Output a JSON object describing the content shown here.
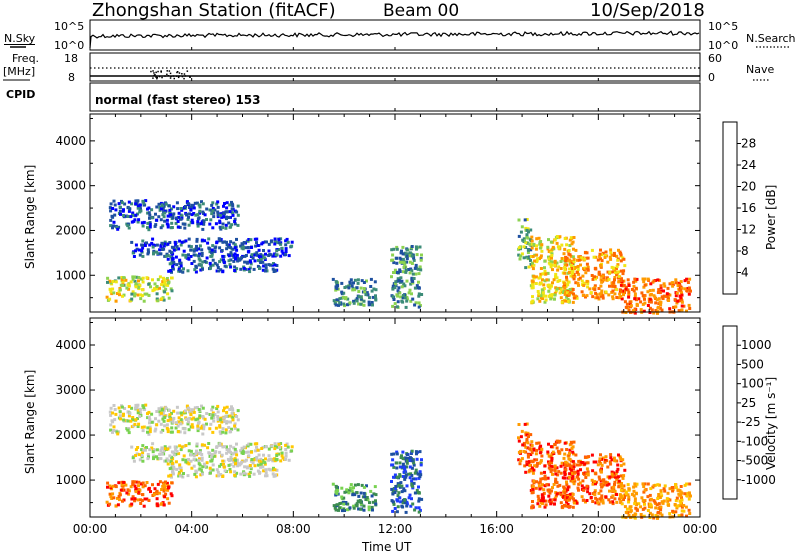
{
  "header": {
    "station": "Zhongshan Station (fitACF)",
    "beam": "Beam 00",
    "date": "10/Sep/2018"
  },
  "strip_labels": {
    "nsky": "N.Sky",
    "nsky_top": "10^5",
    "nsky_bottom": "10^0",
    "nsearch": "N.Search",
    "nsearch_top": "10^5",
    "nsearch_bottom": "10^0",
    "freq_label": "Freq.",
    "freq_unit": "[MHz]",
    "freq_top": "18",
    "freq_bottom": "8",
    "nave": "Nave",
    "nave_top": "60",
    "nave_bottom": "0",
    "cpid": "CPID",
    "cpid_text": "normal (fast stereo) 153"
  },
  "colors": {
    "power": [
      "#0000ff",
      "#1e50a0",
      "#3c8c78",
      "#8cd250",
      "#f0e614",
      "#ff9b00",
      "#ff6400",
      "#ff0000"
    ],
    "velocity": [
      "#ff0000",
      "#ff6400",
      "#ff9b00",
      "#ffc800",
      "#c8c8c8",
      "#78d250",
      "#3c8c50",
      "#1e50a0",
      "#1e3cff"
    ]
  },
  "chart_data": [
    {
      "type": "heatmap",
      "name": "power",
      "xlabel": "Time UT",
      "ylabel": "Slant Range [km]",
      "colorbar_label": "Power [dB]",
      "xlim": [
        0,
        24
      ],
      "ylim": [
        180,
        4600
      ],
      "x_ticks": [
        "00:00",
        "04:00",
        "08:00",
        "12:00",
        "16:00",
        "20:00",
        "00:00"
      ],
      "y_ticks": [
        1000,
        2000,
        3000,
        4000
      ],
      "color_ticks": [
        4,
        8,
        12,
        16,
        20,
        24,
        28
      ],
      "color_range": [
        0,
        32
      ],
      "regions": [
        {
          "t": [
            0.7,
            5.8
          ],
          "r": [
            2050,
            2700
          ],
          "level": 6
        },
        {
          "t": [
            1.5,
            7.9
          ],
          "r": [
            1450,
            1850
          ],
          "level": 5
        },
        {
          "t": [
            3.0,
            7.3
          ],
          "r": [
            1100,
            1500
          ],
          "level": 6
        },
        {
          "t": [
            0.6,
            3.2
          ],
          "r": [
            450,
            1000
          ],
          "level": 16
        },
        {
          "t": [
            9.5,
            11.2
          ],
          "r": [
            350,
            950
          ],
          "level": 9
        },
        {
          "t": [
            11.8,
            13.0
          ],
          "r": [
            300,
            1700
          ],
          "level": 10
        },
        {
          "t": [
            16.8,
            17.3
          ],
          "r": [
            1200,
            2300
          ],
          "level": 12
        },
        {
          "t": [
            17.3,
            19.0
          ],
          "r": [
            400,
            1900
          ],
          "level": 19
        },
        {
          "t": [
            18.6,
            21.0
          ],
          "r": [
            500,
            1600
          ],
          "level": 23
        },
        {
          "t": [
            20.8,
            23.6
          ],
          "r": [
            180,
            950
          ],
          "level": 25
        }
      ]
    },
    {
      "type": "heatmap",
      "name": "velocity",
      "xlabel": "Time UT",
      "ylabel": "Slant Range [km]",
      "colorbar_label": "Velocity [m s⁻¹]",
      "xlim": [
        0,
        24
      ],
      "ylim": [
        180,
        4600
      ],
      "x_ticks": [
        "00:00",
        "04:00",
        "08:00",
        "12:00",
        "16:00",
        "20:00",
        "00:00"
      ],
      "y_ticks": [
        1000,
        2000,
        3000,
        4000
      ],
      "color_ticks": [
        "1000",
        "500",
        "100",
        "25",
        "-25",
        "-100",
        "-500",
        "-1000"
      ],
      "regions": [
        {
          "t": [
            0.7,
            5.8
          ],
          "r": [
            2050,
            2700
          ],
          "level": 4
        },
        {
          "t": [
            1.5,
            7.9
          ],
          "r": [
            1450,
            1850
          ],
          "level": 4
        },
        {
          "t": [
            3.0,
            7.3
          ],
          "r": [
            1100,
            1500
          ],
          "level": 4
        },
        {
          "t": [
            0.6,
            3.2
          ],
          "r": [
            450,
            1000
          ],
          "level": 1
        },
        {
          "t": [
            9.5,
            11.2
          ],
          "r": [
            350,
            950
          ],
          "level": 6
        },
        {
          "t": [
            11.8,
            13.0
          ],
          "r": [
            300,
            1700
          ],
          "level": 7
        },
        {
          "t": [
            16.8,
            17.3
          ],
          "r": [
            1200,
            2300
          ],
          "level": 1
        },
        {
          "t": [
            17.3,
            19.0
          ],
          "r": [
            400,
            1900
          ],
          "level": 1
        },
        {
          "t": [
            18.6,
            21.0
          ],
          "r": [
            500,
            1600
          ],
          "level": 1
        },
        {
          "t": [
            20.8,
            23.6
          ],
          "r": [
            180,
            950
          ],
          "level": 2
        }
      ]
    }
  ]
}
